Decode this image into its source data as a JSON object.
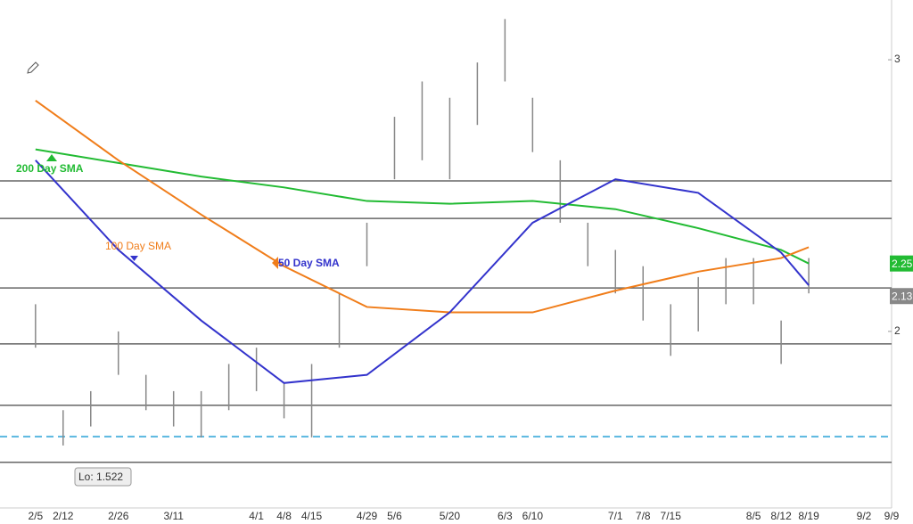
{
  "chart_data": {
    "type": "ohlc",
    "xlim": [
      "1/27",
      "9/9"
    ],
    "ylim": [
      1.35,
      3.22
    ],
    "yticks": [
      2,
      3
    ],
    "xticks": [
      "2/5",
      "2/12",
      "2/26",
      "3/11",
      "4/1",
      "4/8",
      "4/15",
      "4/29",
      "5/6",
      "5/20",
      "6/3",
      "6/10",
      "7/1",
      "7/8",
      "7/15",
      "8/5",
      "8/12",
      "8/19",
      "9/2",
      "9/9"
    ],
    "x": [
      "2/5",
      "2/12",
      "2/19",
      "2/26",
      "3/4",
      "3/11",
      "3/18",
      "3/25",
      "4/1",
      "4/8",
      "4/15",
      "4/22",
      "4/29",
      "5/6",
      "5/13",
      "5/20",
      "5/27",
      "6/3",
      "6/10",
      "6/17",
      "6/24",
      "7/1",
      "7/8",
      "7/15",
      "7/22",
      "7/29",
      "8/5",
      "8/12",
      "8/19"
    ],
    "high": [
      2.1,
      1.71,
      1.78,
      2.0,
      1.84,
      1.78,
      1.78,
      1.88,
      1.94,
      1.81,
      1.88,
      2.14,
      2.4,
      2.79,
      2.92,
      2.86,
      2.99,
      3.15,
      2.86,
      2.63,
      2.4,
      2.3,
      2.24,
      2.1,
      2.2,
      2.27,
      2.27,
      2.04,
      2.27
    ],
    "low": [
      1.94,
      1.58,
      1.65,
      1.84,
      1.71,
      1.65,
      1.61,
      1.71,
      1.78,
      1.68,
      1.61,
      1.94,
      2.24,
      2.56,
      2.63,
      2.56,
      2.76,
      2.92,
      2.66,
      2.4,
      2.24,
      2.14,
      2.04,
      1.91,
      2.0,
      2.1,
      2.1,
      1.88,
      2.14
    ],
    "price_color": "#888888",
    "overlays": [
      {
        "name": "200 Day SMA",
        "color": "#22bb33",
        "x": [
          "2/5",
          "2/26",
          "3/18",
          "4/8",
          "4/29",
          "5/20",
          "6/10",
          "7/1",
          "7/22",
          "8/12",
          "8/19"
        ],
        "values": [
          2.67,
          2.62,
          2.57,
          2.53,
          2.48,
          2.47,
          2.48,
          2.45,
          2.38,
          2.3,
          2.25
        ]
      },
      {
        "name": "100  Day SMA",
        "color": "#f07d1a",
        "x": [
          "2/5",
          "2/26",
          "3/18",
          "4/8",
          "4/29",
          "5/20",
          "6/10",
          "7/1",
          "7/22",
          "8/12",
          "8/19"
        ],
        "values": [
          2.85,
          2.63,
          2.43,
          2.24,
          2.09,
          2.07,
          2.07,
          2.15,
          2.22,
          2.27,
          2.31
        ]
      },
      {
        "name": "50 Day SMA",
        "color": "#3333cc",
        "x": [
          "2/5",
          "2/26",
          "3/18",
          "4/8",
          "4/29",
          "5/20",
          "6/10",
          "7/1",
          "7/22",
          "8/12",
          "8/19"
        ],
        "values": [
          2.63,
          2.3,
          2.04,
          1.81,
          1.84,
          2.07,
          2.4,
          2.56,
          2.51,
          2.29,
          2.17
        ]
      }
    ],
    "hlines": [
      2.554,
      2.416,
      2.16,
      1.954,
      1.728,
      1.518
    ],
    "dashed_line": 1.613,
    "annotation": "Lo: 1.522",
    "price_tags": [
      {
        "value": 2.25,
        "color": "#22bb33"
      },
      {
        "value": 2.13,
        "color": "#888888"
      }
    ]
  }
}
